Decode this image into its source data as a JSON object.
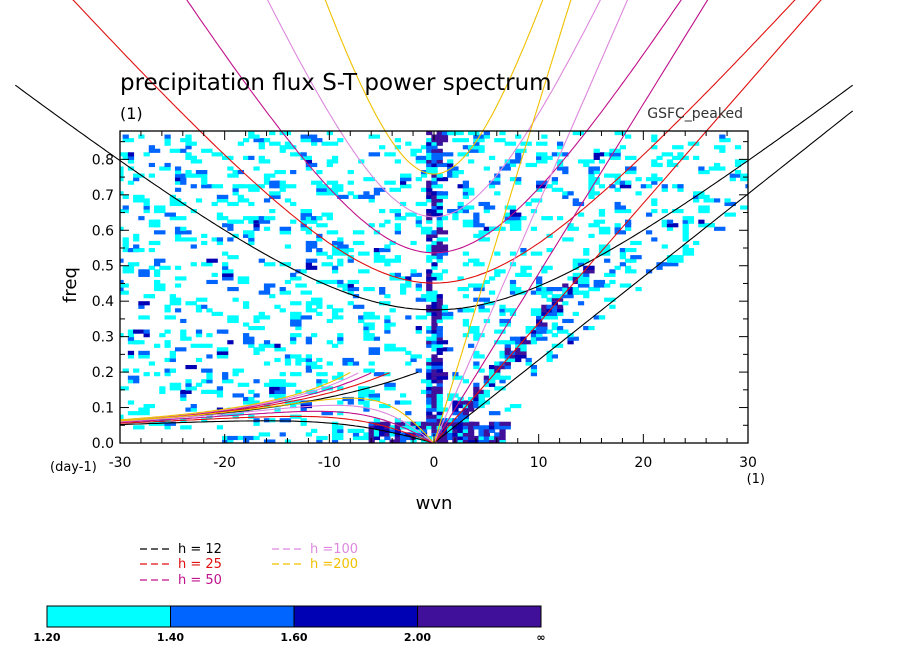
{
  "chart_data": {
    "type": "heatmap",
    "title": "precipitation flux S-T power spectrum",
    "units_label": "(1)",
    "dataset_label": "GSFC_peaked",
    "xlabel": "wvn",
    "ylabel": "freq",
    "x_units": "(1)",
    "y_units": "(day-1)",
    "xlim": [
      -30,
      30
    ],
    "ylim": [
      0,
      0.88
    ],
    "x_ticks": [
      -30,
      -20,
      -10,
      0,
      10,
      20,
      30
    ],
    "x_tick_labels": [
      "-30",
      "-20",
      "-10",
      "0",
      "10",
      "20",
      "30"
    ],
    "y_ticks": [
      0,
      0.1,
      0.2,
      0.3,
      0.4,
      0.5,
      0.6,
      0.7,
      0.8
    ],
    "y_tick_labels": [
      "0.0",
      "0.1",
      "0.2",
      "0.3",
      "0.4",
      "0.5",
      "0.6",
      "0.7",
      "0.8"
    ],
    "grid": false,
    "legend": {
      "placement": "bottom-left",
      "entries": [
        {
          "label": "h = 12",
          "color": "#000000",
          "h": 12
        },
        {
          "label": "h = 25",
          "color": "#e01010",
          "h": 25
        },
        {
          "label": "h = 50",
          "color": "#c0108a",
          "h": 50
        },
        {
          "label": "h =100",
          "color": "#dd88dd",
          "h": 100
        },
        {
          "label": "h =200",
          "color": "#f0c000",
          "h": 200
        }
      ]
    },
    "colorbar": {
      "placement": "bottom",
      "levels": [
        "1.20",
        "1.40",
        "1.60",
        "2.00",
        "∞"
      ],
      "colors": [
        "#00ffff",
        "#0064ff",
        "#0000b4",
        "#40109a"
      ]
    },
    "dispersion_curves": {
      "equivalent_depths": [
        12,
        25,
        50,
        100,
        200
      ],
      "types": [
        "kelvin",
        "equatorial-rossby",
        "inertio-gravity",
        "mixed-rossby-gravity"
      ]
    }
  }
}
